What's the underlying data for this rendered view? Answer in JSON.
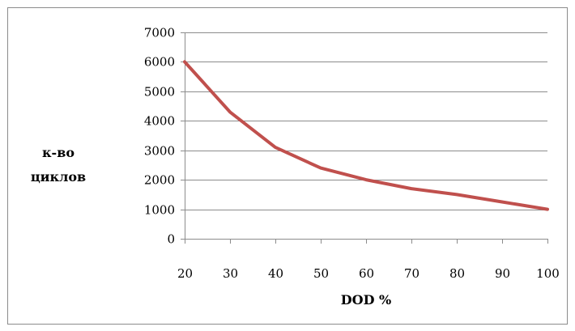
{
  "chart_data": {
    "type": "line",
    "title": "",
    "xlabel": "DOD %",
    "ylabel_lines": [
      "к-во",
      "циклов"
    ],
    "x": [
      20,
      30,
      40,
      50,
      60,
      70,
      80,
      90,
      100
    ],
    "series": [
      {
        "values": [
          6000,
          4300,
          3100,
          2400,
          2000,
          1700,
          1500,
          1250,
          1000
        ],
        "color": "#c0504d"
      }
    ],
    "xlim": [
      20,
      100
    ],
    "ylim": [
      0,
      7000
    ],
    "yticks": [
      0,
      1000,
      2000,
      3000,
      4000,
      5000,
      6000,
      7000
    ],
    "xticks": [
      20,
      30,
      40,
      50,
      60,
      70,
      80,
      90,
      100
    ],
    "grid": true,
    "legend": "none"
  }
}
